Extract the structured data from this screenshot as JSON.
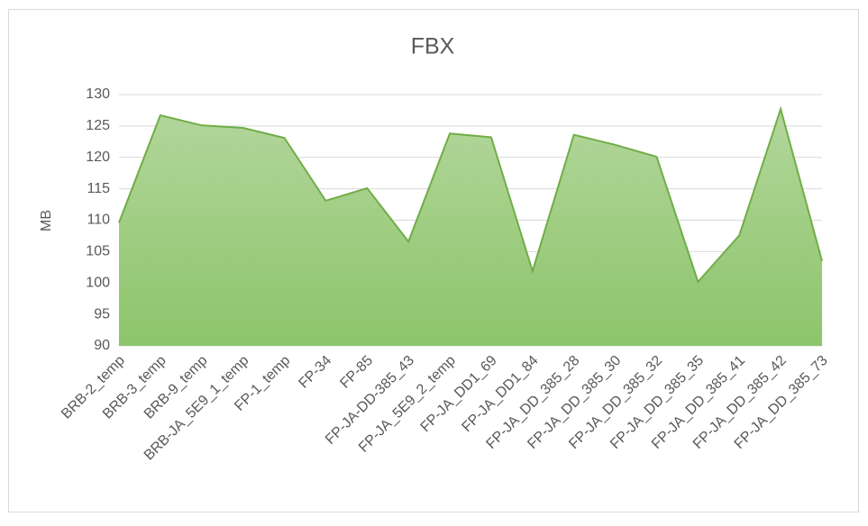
{
  "chart_data": {
    "type": "area",
    "title": "FBX",
    "y_label": "MB",
    "categories": [
      "BRB-2_temp",
      "BRB-3_temp",
      "BRB-9_temp",
      "BRB-JA_5E9_1_temp",
      "FP-1_temp",
      "FP-34",
      "FP-85",
      "FP-JA-DD-385_43",
      "FP-JA_5E9_2_temp",
      "FP-JA_DD1_69",
      "FP-JA_DD1_84",
      "FP-JA_DD_385_28",
      "FP-JA_DD_385_30",
      "FP-JA_DD_385_32",
      "FP-JA_DD_385_35",
      "FP-JA_DD_385_41",
      "FP-JA_DD_385_42",
      "FP-JA_DD_385_73"
    ],
    "values": [
      109.6,
      126.7,
      125.1,
      124.7,
      123.1,
      113.1,
      115.1,
      106.6,
      123.8,
      123.2,
      101.9,
      123.6,
      122.0,
      120.1,
      100.2,
      107.6,
      127.7,
      103.5
    ],
    "color": "#70ad47",
    "fill_top": "#b3d69c",
    "fill_bottom": "#8cc56a",
    "ylim": [
      90,
      130
    ],
    "yticks": [
      90,
      95,
      100,
      105,
      110,
      115,
      120,
      125,
      130
    ],
    "grid": true
  }
}
